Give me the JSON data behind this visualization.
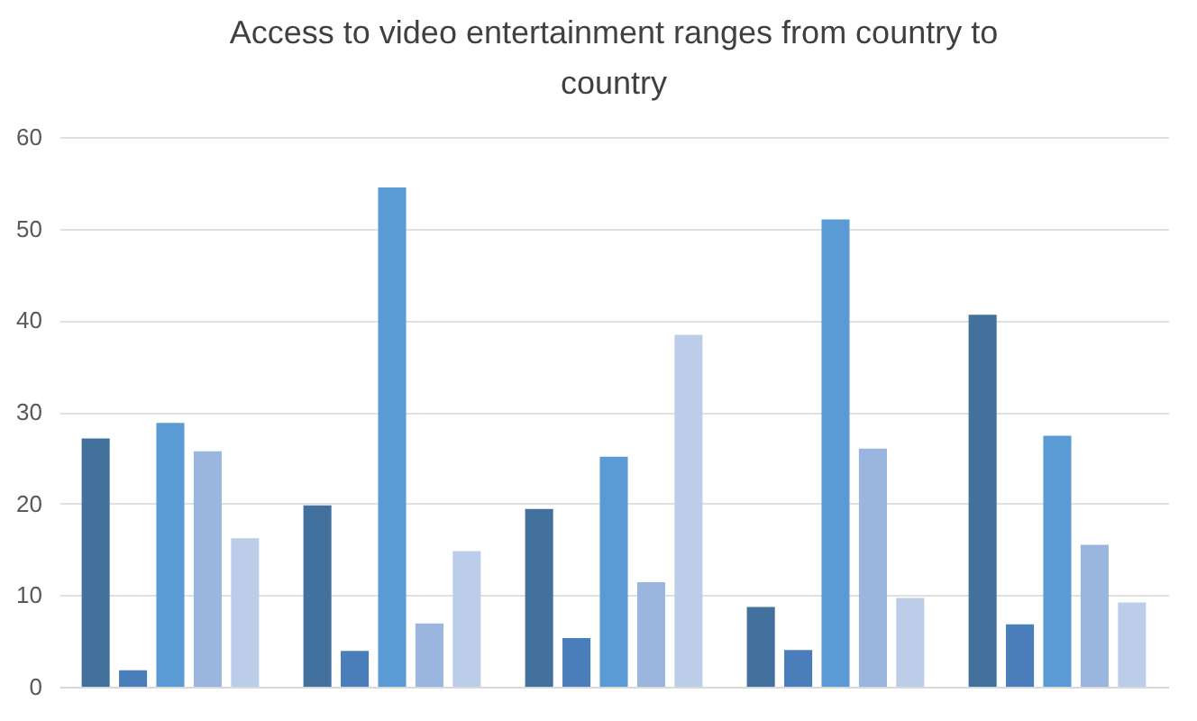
{
  "chart_data": {
    "type": "bar",
    "title": "Access to video entertainment ranges from country to country",
    "categories": [
      null,
      null,
      null,
      null,
      null
    ],
    "series": [
      {
        "color": "#41719c",
        "values": [
          27.1,
          19.8,
          19.4,
          8.7,
          40.6
        ]
      },
      {
        "color": "#4a7ebb",
        "values": [
          1.8,
          3.9,
          5.3,
          4.0,
          6.8
        ]
      },
      {
        "color": "#5b9bd5",
        "values": [
          28.8,
          54.5,
          25.1,
          51.0,
          27.4
        ]
      },
      {
        "color": "#9ab6de",
        "values": [
          25.7,
          6.9,
          11.4,
          26.0,
          15.5
        ]
      },
      {
        "color": "#bccde9",
        "values": [
          16.2,
          14.8,
          38.4,
          9.7,
          9.2
        ]
      }
    ],
    "ylim": [
      0,
      60
    ],
    "yticks": [
      0,
      10,
      20,
      30,
      40,
      50,
      60
    ],
    "grid": "y",
    "tick_labels": "y",
    "legend": false
  }
}
